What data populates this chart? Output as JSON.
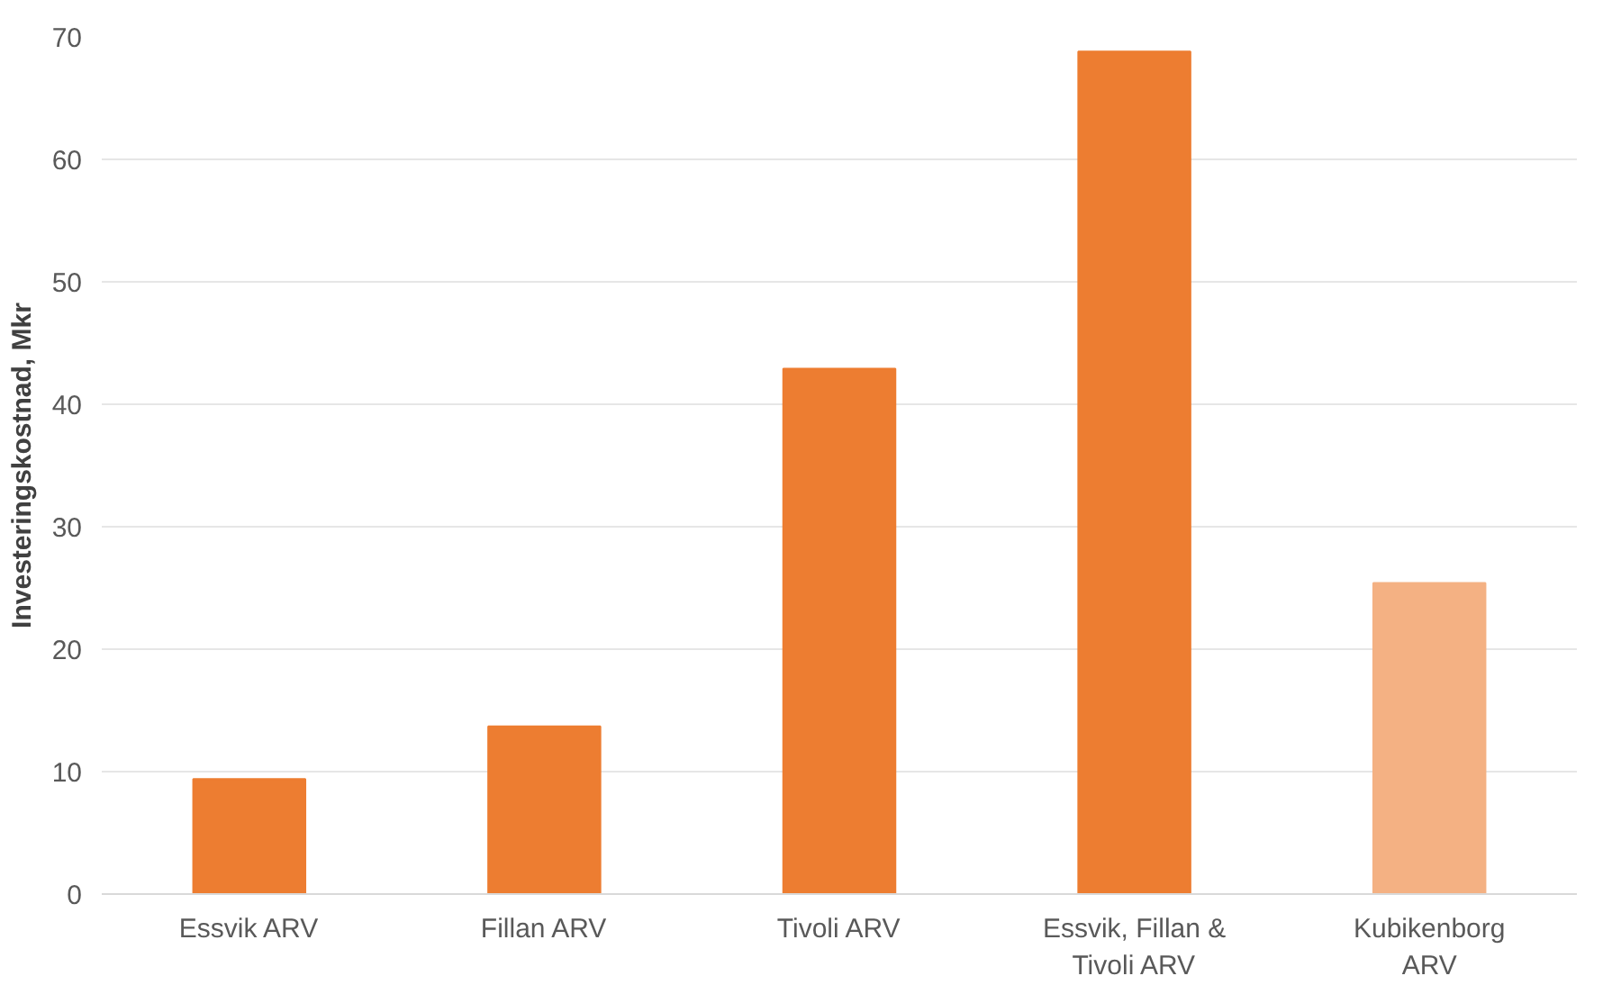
{
  "chart_data": {
    "type": "bar",
    "ylabel": "Investeringskostnad, Mkr",
    "categories": [
      "Essvik ARV",
      "Fillan ARV",
      "Tivoli ARV",
      "Essvik, Fillan & Tivoli ARV",
      "Kubikenborg ARV"
    ],
    "values": [
      9.4,
      13.7,
      42.9,
      68.8,
      25.4
    ],
    "colors": [
      "#ed7d31",
      "#ed7d31",
      "#ed7d31",
      "#ed7d31",
      "#f4b183"
    ],
    "ylim": [
      0,
      70
    ],
    "yticks": [
      0,
      10,
      20,
      30,
      40,
      50,
      60,
      70
    ],
    "grid": "y"
  }
}
